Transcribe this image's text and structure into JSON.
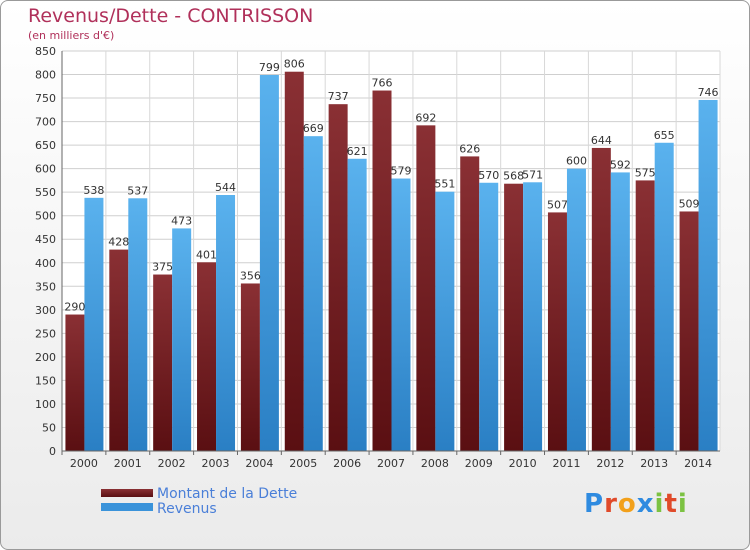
{
  "title": "Revenus/Dette - CONTRISSON",
  "subtitle": "(en milliers d'€)",
  "legend": [
    "Montant de la Dette",
    "Revenus"
  ],
  "logo_text": "Proxiti",
  "colors": {
    "dette": "#7a2428",
    "revenus": "#3a93da",
    "title": "#b0305a"
  },
  "chart_data": {
    "type": "bar",
    "categories": [
      "2000",
      "2001",
      "2002",
      "2003",
      "2004",
      "2005",
      "2006",
      "2007",
      "2008",
      "2009",
      "2010",
      "2011",
      "2012",
      "2013",
      "2014"
    ],
    "series": [
      {
        "name": "Montant de la Dette",
        "values": [
          290,
          428,
          375,
          401,
          356,
          806,
          737,
          766,
          692,
          626,
          568,
          507,
          644,
          575,
          509
        ]
      },
      {
        "name": "Revenus",
        "values": [
          538,
          537,
          473,
          544,
          799,
          669,
          621,
          579,
          551,
          570,
          571,
          600,
          592,
          655,
          746
        ]
      }
    ],
    "ylim": [
      0,
      850
    ],
    "yticks": [
      0,
      50,
      100,
      150,
      200,
      250,
      300,
      350,
      400,
      450,
      500,
      550,
      600,
      650,
      700,
      750,
      800,
      850
    ],
    "grid": true
  }
}
